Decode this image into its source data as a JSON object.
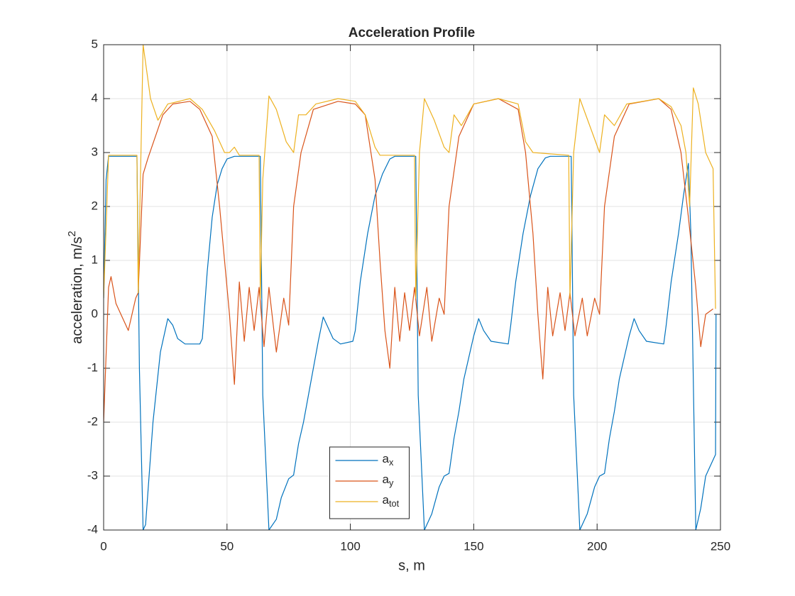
{
  "chart_data": {
    "type": "line",
    "title": "Acceleration Profile",
    "x_label": "s, m",
    "y_label": "acceleration, m/s^2",
    "xlim": [
      0,
      250
    ],
    "ylim": [
      -4,
      5
    ],
    "xticks": [
      0,
      50,
      100,
      150,
      200,
      250
    ],
    "yticks": [
      -4,
      -3,
      -2,
      -1,
      0,
      1,
      2,
      3,
      4,
      5
    ],
    "grid": true,
    "legend": "lower center",
    "series": [
      {
        "name": "a_x",
        "color": "#0072BD",
        "x": [
          0,
          1,
          2,
          13.5,
          14.5,
          16,
          17,
          20,
          23,
          26,
          28,
          30,
          33,
          39,
          40,
          42,
          44,
          46,
          48,
          50,
          53,
          63.5,
          64.5,
          67,
          70,
          72,
          75,
          77,
          79,
          81,
          83,
          85,
          87,
          89,
          91,
          93,
          96,
          101,
          102,
          104,
          107,
          110,
          113,
          116,
          118,
          126.5,
          127.5,
          130,
          133,
          136,
          138,
          140,
          142,
          144,
          146,
          148,
          150,
          152,
          154,
          157,
          164,
          165,
          167,
          170,
          173,
          176,
          179,
          181,
          189.5,
          190.5,
          193,
          196,
          199,
          201,
          203,
          205,
          207,
          209,
          211,
          213,
          215,
          217,
          220,
          227,
          228,
          230,
          233,
          235,
          237,
          238,
          240,
          242,
          244,
          246,
          248,
          248.2
        ],
        "values": [
          0.3,
          2.5,
          2.93,
          2.93,
          -1,
          -4,
          -3.9,
          -2,
          -0.7,
          -0.08,
          -0.2,
          -0.45,
          -0.55,
          -0.55,
          -0.45,
          0.8,
          1.8,
          2.4,
          2.7,
          2.88,
          2.93,
          2.93,
          -1.5,
          -4,
          -3.8,
          -3.4,
          -3.05,
          -2.98,
          -2.4,
          -2,
          -1.5,
          -1,
          -0.5,
          -0.05,
          -0.25,
          -0.45,
          -0.55,
          -0.5,
          -0.3,
          0.6,
          1.5,
          2.2,
          2.6,
          2.88,
          2.93,
          2.93,
          -1.5,
          -4,
          -3.7,
          -3.2,
          -3,
          -2.95,
          -2.3,
          -1.8,
          -1.2,
          -0.8,
          -0.4,
          -0.08,
          -0.3,
          -0.5,
          -0.55,
          -0.2,
          0.6,
          1.5,
          2.2,
          2.7,
          2.9,
          2.93,
          2.93,
          -1.5,
          -4,
          -3.7,
          -3.2,
          -3,
          -2.95,
          -2.3,
          -1.8,
          -1.2,
          -0.8,
          -0.4,
          -0.08,
          -0.3,
          -0.5,
          -0.55,
          -0.2,
          0.6,
          1.5,
          2.2,
          2.8,
          1.5,
          -4,
          -3.6,
          -3,
          -2.8,
          -2.6,
          0
        ]
      },
      {
        "name": "a_y",
        "color": "#D95319",
        "x": [
          0,
          2,
          3,
          5,
          7,
          10,
          13,
          14,
          16,
          18,
          21,
          24,
          28,
          35,
          39,
          44,
          47,
          49,
          51,
          53,
          55,
          57,
          59,
          61,
          63,
          65,
          67,
          70,
          73,
          75,
          77,
          80,
          85,
          95,
          102,
          106,
          110,
          112,
          114,
          116,
          118,
          120,
          122,
          124,
          126,
          128,
          131,
          133,
          136,
          138,
          140,
          144,
          150,
          160,
          168,
          171,
          174,
          176,
          178,
          180,
          182,
          185,
          187,
          189,
          191,
          194,
          196,
          199,
          201,
          203,
          207,
          213,
          225,
          230,
          234,
          237,
          240,
          242,
          244,
          247
        ],
        "values": [
          -2,
          0.5,
          0.7,
          0.2,
          0,
          -0.3,
          0.3,
          0.4,
          2.6,
          2.9,
          3.3,
          3.7,
          3.9,
          3.95,
          3.8,
          3.3,
          2,
          1,
          0,
          -1.3,
          0.6,
          -0.5,
          0.5,
          -0.3,
          0.5,
          -0.6,
          0.5,
          -0.7,
          0.3,
          -0.2,
          2,
          3,
          3.8,
          3.95,
          3.9,
          3.7,
          2.5,
          1,
          -0.3,
          -1,
          0.5,
          -0.5,
          0.4,
          -0.3,
          0.5,
          -0.4,
          0.5,
          -0.5,
          0.3,
          0,
          2,
          3.3,
          3.9,
          4,
          3.8,
          3,
          1.5,
          0,
          -1.2,
          0.5,
          -0.4,
          0.4,
          -0.3,
          0.4,
          -0.4,
          0.3,
          -0.4,
          0.3,
          0,
          2,
          3.3,
          3.9,
          4,
          3.8,
          3,
          1.8,
          0.5,
          -0.6,
          0,
          0.1
        ]
      },
      {
        "name": "a_tot",
        "color": "#EDB120",
        "x": [
          0,
          2,
          13.5,
          14,
          16,
          17.5,
          19,
          22,
          26,
          35,
          40,
          45,
          49,
          51,
          53,
          55,
          63,
          63.5,
          64.5,
          67,
          70,
          74,
          77,
          79,
          82,
          86,
          95,
          102,
          106,
          110,
          112,
          126,
          126.5,
          128,
          130,
          134,
          138,
          140,
          142,
          145,
          150,
          160,
          168,
          171,
          174,
          188.5,
          189,
          190.5,
          193,
          197,
          201,
          203,
          207,
          212,
          225,
          230,
          234,
          236,
          237.5,
          239,
          241,
          244,
          247,
          248
        ],
        "values": [
          0.3,
          2.95,
          2.95,
          0.4,
          5,
          4.5,
          4,
          3.6,
          3.9,
          4,
          3.8,
          3.4,
          3,
          3,
          3.1,
          2.95,
          2.95,
          0.3,
          2.5,
          4.05,
          3.8,
          3.2,
          3,
          3.7,
          3.7,
          3.9,
          4,
          3.95,
          3.7,
          3.1,
          2.95,
          2.95,
          0.3,
          3,
          4,
          3.6,
          3.1,
          3,
          3.7,
          3.5,
          3.9,
          4,
          3.9,
          3.2,
          3,
          2.95,
          0.3,
          3,
          4,
          3.5,
          3,
          3.7,
          3.5,
          3.9,
          4,
          3.85,
          3.5,
          3,
          2,
          4.2,
          3.9,
          3,
          2.7,
          0.1
        ]
      }
    ]
  }
}
